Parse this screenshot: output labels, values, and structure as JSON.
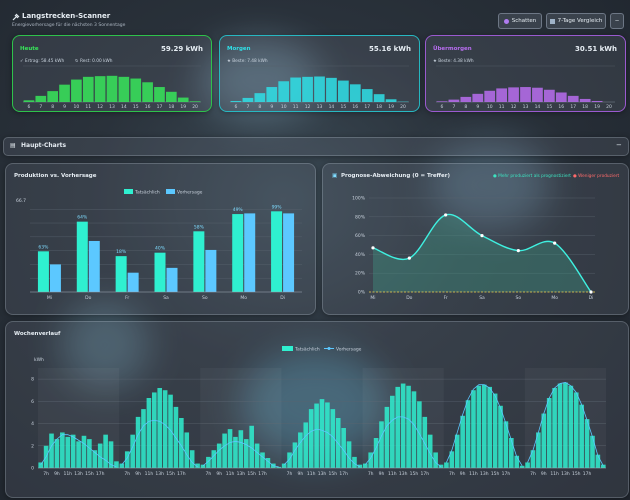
{
  "header": {
    "title": "Langstrecken-Scanner",
    "subtitle": "Energievorhersage für die nächsten 3 Sonnentage",
    "btn_shadow": "Schatten",
    "btn_compare": "7-Tage Vergleich",
    "btn_minus": "−"
  },
  "days": [
    {
      "label": "Heute",
      "value": "59.29 kWh",
      "note1": "Ertrag: 58.45 kWh",
      "note2": "Rest: 0.00 kWh",
      "color": "#37e65a",
      "border": "#2ec24b",
      "chart_data": {
        "type": "bar",
        "categories": [
          "6",
          "7",
          "8",
          "9",
          "10",
          "11",
          "12",
          "13",
          "14",
          "15",
          "16",
          "17",
          "18",
          "19",
          "20"
        ],
        "values": [
          0.5,
          1.8,
          3.2,
          5.1,
          6.6,
          7.4,
          7.6,
          7.7,
          7.4,
          6.9,
          5.8,
          4.4,
          3.0,
          1.3,
          0.2
        ],
        "ylim": [
          0,
          10
        ]
      }
    },
    {
      "label": "Morgen",
      "value": "55.16 kWh",
      "note1": "Beste: 7.48 kWh",
      "note2": "",
      "color": "#2fe0e8",
      "border": "#27b8c2",
      "chart_data": {
        "type": "bar",
        "categories": [
          "6",
          "7",
          "8",
          "9",
          "10",
          "11",
          "12",
          "13",
          "14",
          "15",
          "16",
          "17",
          "18",
          "19",
          "20"
        ],
        "values": [
          0.3,
          1.2,
          2.6,
          4.4,
          6.1,
          7.2,
          7.4,
          7.5,
          7.1,
          6.3,
          5.2,
          3.8,
          2.3,
          0.8,
          0.1
        ],
        "ylim": [
          0,
          10
        ]
      }
    },
    {
      "label": "Übermorgen",
      "value": "30.51 kWh",
      "note1": "Beste: 4.38 kWh",
      "note2": "",
      "color": "#b86df0",
      "border": "#9a5ad0",
      "chart_data": {
        "type": "bar",
        "categories": [
          "6",
          "7",
          "8",
          "9",
          "10",
          "11",
          "12",
          "13",
          "14",
          "15",
          "16",
          "17",
          "18",
          "19",
          "20"
        ],
        "values": [
          0.2,
          0.7,
          1.5,
          2.4,
          3.3,
          4.0,
          4.3,
          4.4,
          4.2,
          3.6,
          2.8,
          1.8,
          0.9,
          0.3,
          0.0
        ],
        "ylim": [
          0,
          10
        ]
      }
    }
  ],
  "section": {
    "title": "Haupt-Charts",
    "collapse": "−"
  },
  "production": {
    "title": "Produktion vs. Vorhersage",
    "legend": [
      "Tatsächlich",
      "Vorhersage"
    ],
    "ytop": "66.7",
    "chart_data": {
      "type": "bar",
      "categories": [
        "Mi",
        "Do",
        "Fr",
        "Sa",
        "So",
        "Mo",
        "Di"
      ],
      "series": [
        {
          "name": "Tatsächlich",
          "values": [
            29.5,
            51,
            26,
            28.5,
            44,
            56.5,
            58.5
          ],
          "color": "#2ff0d0"
        },
        {
          "name": "Vorhersage",
          "values": [
            20,
            37,
            14,
            17.5,
            30.5,
            57,
            57
          ],
          "color": "#5cc8ff"
        }
      ],
      "labels": [
        "63%",
        "64%",
        "18%",
        "40%",
        "58%",
        "49%",
        "99%"
      ],
      "ylim": [
        0,
        66.7
      ]
    }
  },
  "deviation": {
    "title": "Prognose-Abweichung (0 = Treffer)",
    "legend_pos": "● Mehr produziert als prognostiziert",
    "legend_neg": "● Weniger produziert",
    "chart_data": {
      "type": "line",
      "categories": [
        "Mi",
        "Do",
        "Fr",
        "Sa",
        "So",
        "Mo",
        "Di"
      ],
      "values": [
        47,
        36,
        82,
        60,
        44,
        52,
        0
      ],
      "yticks": [
        "0%",
        "20%",
        "40%",
        "60%",
        "80%",
        "100%"
      ],
      "ylim": [
        0,
        100
      ]
    }
  },
  "weekly": {
    "title": "Wochenverlauf",
    "legend": [
      "Tatsächlich",
      "Vorhersage"
    ],
    "yunit": "kWh",
    "yticks": [
      "0",
      "2",
      "4",
      "6",
      "8"
    ],
    "xtick_labels": [
      "7h",
      "9h",
      "11h",
      "13h",
      "15h",
      "17h"
    ],
    "chart_data": {
      "type": "bar",
      "ylim": [
        0,
        9
      ],
      "days": [
        {
          "actual": [
            0.5,
            2.0,
            3.1,
            2.6,
            3.2,
            2.8,
            3.0,
            2.4,
            2.9,
            2.6,
            1.6,
            2.2,
            3.0,
            2.4,
            0.6
          ],
          "forecast": [
            0.3,
            1.0,
            2.0,
            2.6,
            3.0,
            3.0,
            2.8,
            2.5,
            2.2,
            1.8,
            1.4,
            1.0,
            0.7,
            0.3,
            0.1
          ]
        },
        {
          "actual": [
            0.4,
            1.5,
            3.0,
            4.6,
            5.3,
            6.3,
            6.8,
            7.2,
            7.0,
            6.6,
            5.5,
            4.5,
            3.2,
            1.6,
            0.4
          ],
          "forecast": [
            0.3,
            0.9,
            1.9,
            3.0,
            3.8,
            4.2,
            4.3,
            4.2,
            3.9,
            3.4,
            2.7,
            2.0,
            1.2,
            0.5,
            0.1
          ]
        },
        {
          "actual": [
            0.3,
            1.0,
            1.6,
            2.2,
            3.1,
            3.5,
            2.8,
            3.4,
            2.6,
            3.8,
            2.2,
            1.4,
            0.9,
            0.4,
            0.1
          ],
          "forecast": [
            0.2,
            0.6,
            1.1,
            1.6,
            2.0,
            2.3,
            2.4,
            2.3,
            2.1,
            1.8,
            1.4,
            1.0,
            0.6,
            0.2,
            0.1
          ]
        },
        {
          "actual": [
            0.4,
            1.4,
            2.3,
            3.2,
            4.1,
            5.3,
            5.8,
            6.2,
            5.9,
            5.3,
            4.5,
            3.6,
            2.4,
            1.0,
            0.3
          ],
          "forecast": [
            0.3,
            0.8,
            1.6,
            2.3,
            2.9,
            3.3,
            3.5,
            3.4,
            3.2,
            2.8,
            2.2,
            1.6,
            0.9,
            0.4,
            0.1
          ]
        },
        {
          "actual": [
            0.4,
            1.4,
            2.7,
            4.2,
            5.5,
            6.5,
            7.3,
            7.6,
            7.4,
            6.9,
            6.0,
            4.6,
            3.0,
            1.4,
            0.3
          ],
          "forecast": [
            0.3,
            0.9,
            1.8,
            2.9,
            3.8,
            4.3,
            4.6,
            4.6,
            4.4,
            3.9,
            3.1,
            2.2,
            1.3,
            0.5,
            0.1
          ]
        },
        {
          "actual": [
            0.5,
            1.5,
            3.0,
            4.7,
            6.1,
            7.0,
            7.4,
            7.5,
            7.3,
            6.7,
            5.6,
            4.2,
            2.7,
            1.1,
            0.2
          ],
          "forecast": [
            0.5,
            1.6,
            3.2,
            4.8,
            6.2,
            7.1,
            7.5,
            7.5,
            7.2,
            6.5,
            5.4,
            4.0,
            2.5,
            1.0,
            0.2
          ]
        },
        {
          "actual": [
            0.5,
            1.6,
            3.2,
            4.9,
            6.3,
            7.2,
            7.6,
            7.7,
            7.4,
            6.8,
            5.7,
            4.4,
            2.9,
            1.2,
            0.3
          ],
          "forecast": [
            0.5,
            1.6,
            3.2,
            4.9,
            6.3,
            7.2,
            7.6,
            7.7,
            7.4,
            6.8,
            5.7,
            4.3,
            2.8,
            1.1,
            0.2
          ]
        }
      ]
    }
  }
}
